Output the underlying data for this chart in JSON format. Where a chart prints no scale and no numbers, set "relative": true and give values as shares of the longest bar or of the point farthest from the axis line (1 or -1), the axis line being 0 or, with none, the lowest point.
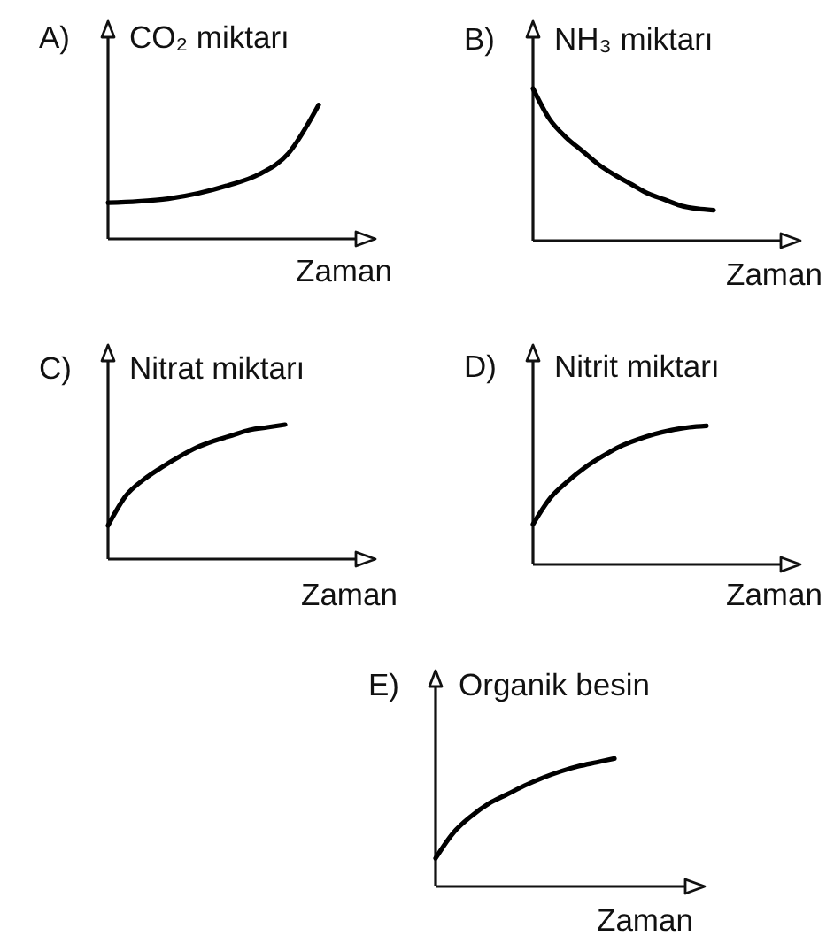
{
  "chart_data": [
    {
      "type": "line",
      "title": "A)",
      "ylabel": "CO₂ miktarı",
      "xlabel": "Zaman",
      "relative": true,
      "categories": [
        null,
        null,
        null,
        null,
        null,
        null,
        null,
        null
      ],
      "values": [
        0.27,
        0.28,
        0.3,
        0.34,
        0.4,
        0.48,
        0.64,
        1
      ],
      "color": "#000000"
    },
    {
      "type": "line",
      "title": "B)",
      "ylabel": "NH₃ miktarı",
      "xlabel": "Zaman",
      "relative": true,
      "categories": [
        null,
        null,
        null,
        null,
        null,
        null,
        null,
        null,
        null,
        null,
        null,
        null
      ],
      "values": [
        1,
        0.8,
        0.68,
        0.59,
        0.5,
        0.43,
        0.37,
        0.31,
        0.27,
        0.23,
        0.21,
        0.2
      ],
      "color": "#000000"
    },
    {
      "type": "line",
      "title": "C)",
      "ylabel": "Nitrat miktarı",
      "xlabel": "Zaman",
      "relative": true,
      "categories": [
        null,
        null,
        null,
        null,
        null,
        null,
        null,
        null,
        null,
        null,
        null
      ],
      "values": [
        0.25,
        0.47,
        0.59,
        0.68,
        0.76,
        0.83,
        0.88,
        0.92,
        0.96,
        0.98,
        1
      ],
      "color": "#000000"
    },
    {
      "type": "line",
      "title": "D)",
      "ylabel": "Nitrit miktarı",
      "xlabel": "Zaman",
      "relative": true,
      "categories": [
        null,
        null,
        null,
        null,
        null,
        null,
        null,
        null,
        null,
        null,
        null
      ],
      "values": [
        0.29,
        0.48,
        0.6,
        0.7,
        0.78,
        0.85,
        0.9,
        0.94,
        0.97,
        0.99,
        1
      ],
      "color": "#000000"
    },
    {
      "type": "line",
      "title": "E)",
      "ylabel": "Organik besin",
      "xlabel": "Zaman",
      "relative": true,
      "categories": [
        null,
        null,
        null,
        null,
        null,
        null,
        null,
        null,
        null,
        null,
        null
      ],
      "values": [
        0.22,
        0.42,
        0.55,
        0.65,
        0.72,
        0.79,
        0.85,
        0.9,
        0.94,
        0.97,
        1
      ],
      "color": "#000000"
    }
  ]
}
